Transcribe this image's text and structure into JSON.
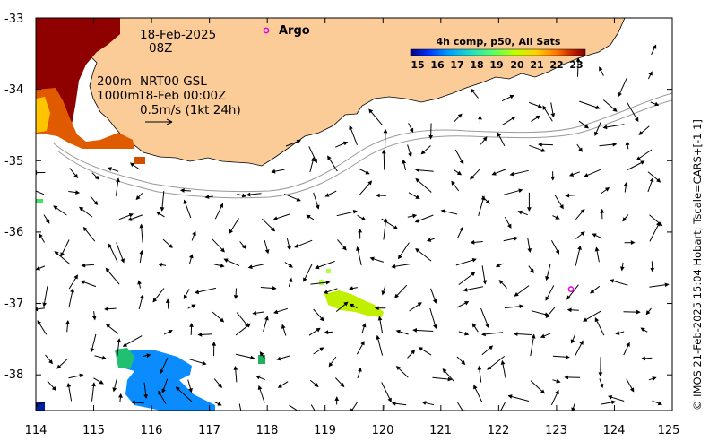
{
  "map": {
    "lon_range": [
      114,
      125
    ],
    "lat_range": [
      -38.5,
      -33
    ],
    "x_ticks": [
      "114",
      "115",
      "116",
      "117",
      "118",
      "119",
      "120",
      "121",
      "122",
      "123",
      "124",
      "125"
    ],
    "y_ticks": [
      "-33",
      "-34",
      "-35",
      "-36",
      "-37",
      "-38"
    ],
    "colors": {
      "land": "#fbcb98",
      "coast": "#000000",
      "isobath": "#9a9a9a",
      "argo": "#e000e0"
    }
  },
  "annotations": {
    "date": "18-Feb-2025",
    "time": "08Z",
    "depth_200": "200m",
    "depth_1000": "1000m",
    "product": "NRT00 GSL",
    "product_time": "18-Feb 00:00Z",
    "scale": "0.5m/s (1kt 24h)"
  },
  "legend": {
    "argo_label": "Argo",
    "colorbar_title": "4h comp, p50, All Sats",
    "colorbar_ticks": [
      "15",
      "16",
      "17",
      "18",
      "19",
      "20",
      "21",
      "22",
      "23"
    ],
    "colorbar_colors": [
      "#00007f",
      "#0040ff",
      "#00b0ff",
      "#20e0c0",
      "#60ff60",
      "#c0ff00",
      "#ffd000",
      "#ff7000",
      "#c02000",
      "#800000"
    ]
  },
  "argo_float": {
    "lon": 123.25,
    "lat": -36.8
  },
  "credit": "© IMOS 21-Feb-2025 15:04 Hobart; Tscale=CARS+[-1 1]"
}
